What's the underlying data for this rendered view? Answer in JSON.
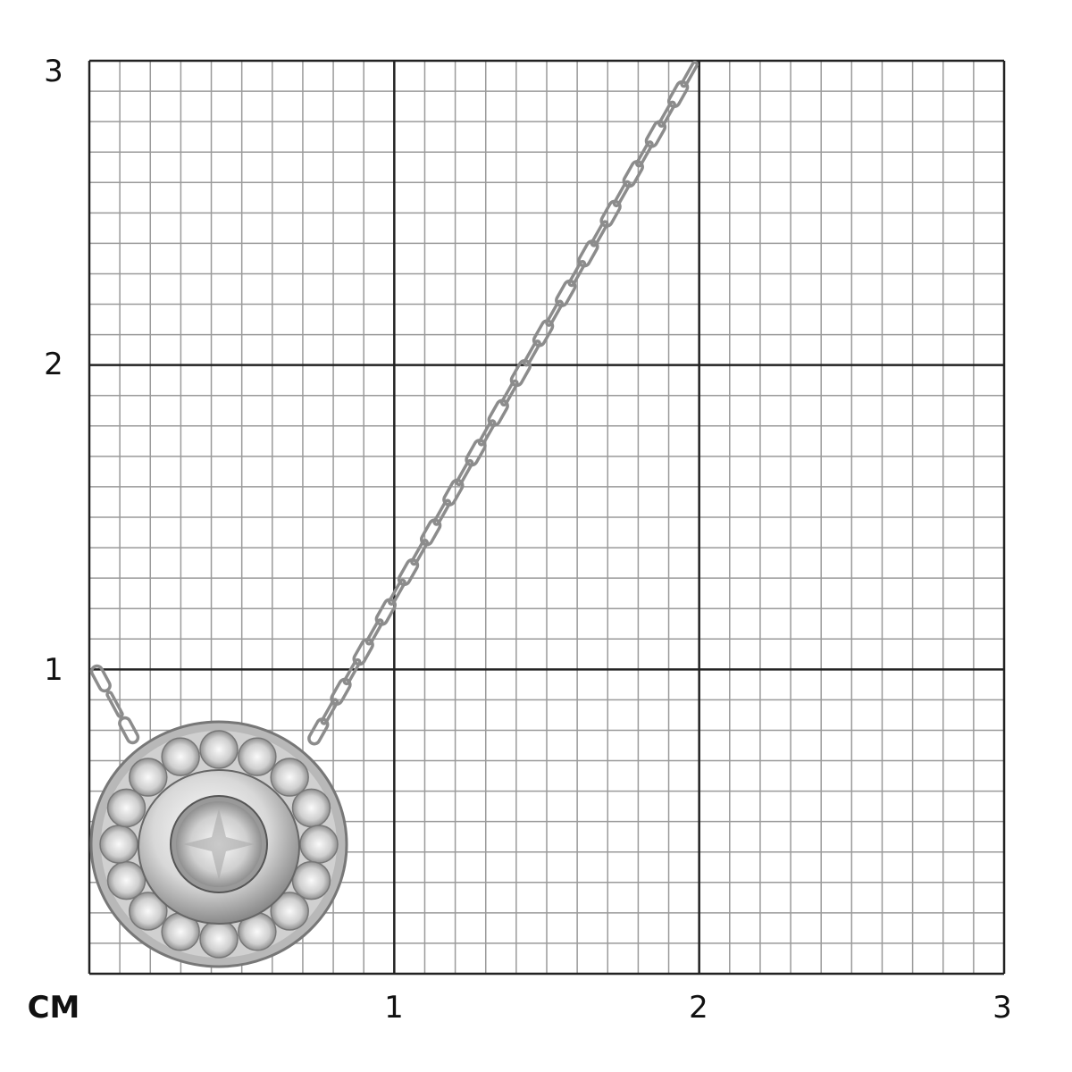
{
  "axis": {
    "unit": "CM",
    "x_ticks": [
      "1",
      "2",
      "3"
    ],
    "y_ticks": [
      "1",
      "2",
      "3"
    ],
    "range_cm": [
      0,
      3
    ],
    "minor_divisions_per_cm": 10
  },
  "colors": {
    "major_grid": "#222222",
    "minor_grid": "#9a9a9a",
    "metal": "#c8c8c8"
  },
  "product": {
    "type": "pendant-necklace"
  }
}
